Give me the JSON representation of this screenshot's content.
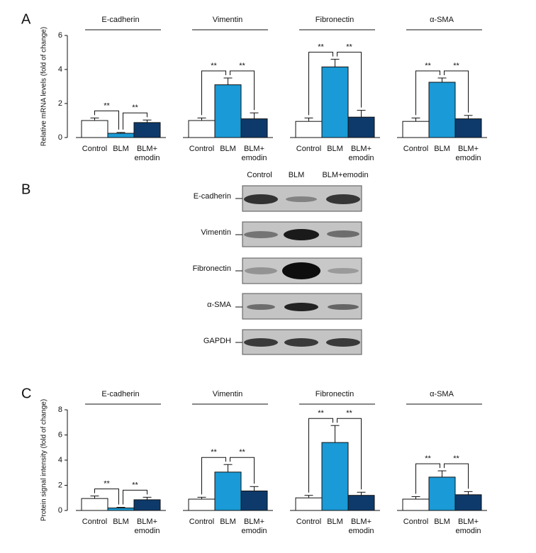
{
  "chart_data": [
    {
      "type": "bar",
      "panel": "A",
      "ylabel": "Relative mRNA levels (fold of change)",
      "ylim": [
        0,
        6
      ],
      "yticks": [
        0,
        2,
        4,
        6
      ],
      "categories": [
        "Control",
        "BLM",
        "BLM+\nemodin"
      ],
      "colors": [
        "#ffffff",
        "#1a9ad6",
        "#0d3a6b"
      ],
      "annotation": "**",
      "groups": [
        {
          "title": "E-cadherin",
          "values": [
            1.0,
            0.25,
            0.88
          ],
          "errors": [
            0.15,
            0.05,
            0.15
          ]
        },
        {
          "title": "Vimentin",
          "values": [
            1.0,
            3.1,
            1.1
          ],
          "errors": [
            0.15,
            0.4,
            0.35
          ]
        },
        {
          "title": "Fibronectin",
          "values": [
            0.95,
            4.15,
            1.2
          ],
          "errors": [
            0.2,
            0.45,
            0.4
          ]
        },
        {
          "title": "α-SMA",
          "values": [
            0.95,
            3.25,
            1.1
          ],
          "errors": [
            0.2,
            0.25,
            0.2
          ]
        }
      ]
    },
    {
      "type": "bar",
      "panel": "C",
      "ylabel": "Protein signal intensity (fold of change)",
      "ylim": [
        0,
        8
      ],
      "yticks": [
        0,
        2,
        4,
        6,
        8
      ],
      "categories": [
        "Control",
        "BLM",
        "BLM+\nemodin"
      ],
      "colors": [
        "#ffffff",
        "#1a9ad6",
        "#0d3a6b"
      ],
      "annotation": "**",
      "groups": [
        {
          "title": "E-cadherin",
          "values": [
            0.95,
            0.2,
            0.85
          ],
          "errors": [
            0.2,
            0.05,
            0.2
          ]
        },
        {
          "title": "Vimentin",
          "values": [
            0.9,
            3.05,
            1.55
          ],
          "errors": [
            0.15,
            0.6,
            0.35
          ]
        },
        {
          "title": "Fibronectin",
          "values": [
            1.0,
            5.4,
            1.2
          ],
          "errors": [
            0.2,
            1.35,
            0.25
          ]
        },
        {
          "title": "α-SMA",
          "values": [
            0.9,
            2.65,
            1.25
          ],
          "errors": [
            0.2,
            0.5,
            0.25
          ]
        }
      ]
    }
  ],
  "blot": {
    "panel": "B",
    "lanes": [
      "Control",
      "BLM",
      "BLM+emodin"
    ],
    "rows": [
      "E-cadherin",
      "Vimentin",
      "Fibronectin",
      "α-SMA",
      "GAPDH"
    ]
  }
}
